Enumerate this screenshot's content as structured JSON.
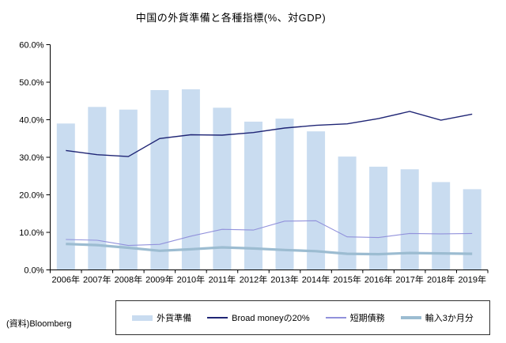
{
  "source": "(資料)Bloomberg",
  "colors": {
    "axis": "#000000",
    "text": "#000000",
    "legend_border": "#2f2f2f",
    "background": "#ffffff"
  },
  "chart_data": {
    "type": "bar",
    "subtype": "combo-bar-and-lines",
    "title": "中国の外貨準備と各種指標(%、対GDP)",
    "categories": [
      "2006年",
      "2007年",
      "2008年",
      "2009年",
      "2010年",
      "2011年",
      "2012年",
      "2013年",
      "2014年",
      "2015年",
      "2016年",
      "2017年",
      "2018年",
      "2019年"
    ],
    "series": [
      {
        "key": "fx-reserves",
        "name": "外貨準備",
        "type": "bar",
        "color": "#C9DCF0",
        "values": [
          39.0,
          43.4,
          42.7,
          47.9,
          48.1,
          43.2,
          39.5,
          40.3,
          36.9,
          30.2,
          27.5,
          26.8,
          23.4,
          21.5
        ]
      },
      {
        "key": "broad-money-20pct",
        "name": "Broad moneyの20%",
        "type": "line",
        "color": "#1F2575",
        "stroke_width": 1.4,
        "values": [
          31.8,
          30.7,
          30.2,
          35.0,
          36.0,
          35.9,
          36.6,
          37.8,
          38.5,
          38.9,
          40.3,
          42.2,
          39.9,
          41.5
        ]
      },
      {
        "key": "short-term-debt",
        "name": "短期債務",
        "type": "line",
        "color": "#9191DB",
        "stroke_width": 1.1,
        "values": [
          8.1,
          7.9,
          6.5,
          6.8,
          9.0,
          10.8,
          10.6,
          13.0,
          13.1,
          8.8,
          8.6,
          9.7,
          9.6,
          9.7
        ]
      },
      {
        "key": "imports-3-months",
        "name": "輸入3か月分",
        "type": "line",
        "color": "#9CBCD1",
        "stroke_width": 3.2,
        "values": [
          6.9,
          6.6,
          5.9,
          5.1,
          5.5,
          6.0,
          5.7,
          5.3,
          5.0,
          4.3,
          4.2,
          4.5,
          4.4,
          4.3
        ]
      }
    ],
    "ylim": [
      0,
      60
    ],
    "ytick_labels": [
      "0.0%",
      "10.0%",
      "20.0%",
      "30.0%",
      "40.0%",
      "50.0%",
      "60.0%"
    ],
    "grid": false,
    "legend_position": "bottom"
  }
}
